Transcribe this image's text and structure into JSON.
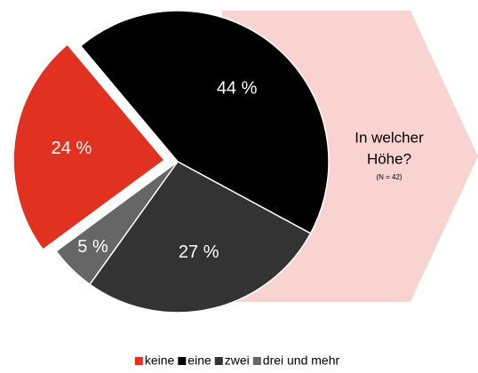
{
  "chart_data": {
    "type": "pie",
    "categories": [
      "keine",
      "eine",
      "zwei",
      "drei und mehr"
    ],
    "values": [
      24,
      44,
      27,
      5
    ],
    "value_labels": [
      "24 %",
      "44 %",
      "27 %",
      "5 %"
    ],
    "colors": [
      "#e03121",
      "#000000",
      "#333333",
      "#666666"
    ],
    "annotation": {
      "lines": [
        "In welcher",
        "Höhe?"
      ],
      "note": "(N = 42)"
    },
    "legend": "bottom"
  }
}
